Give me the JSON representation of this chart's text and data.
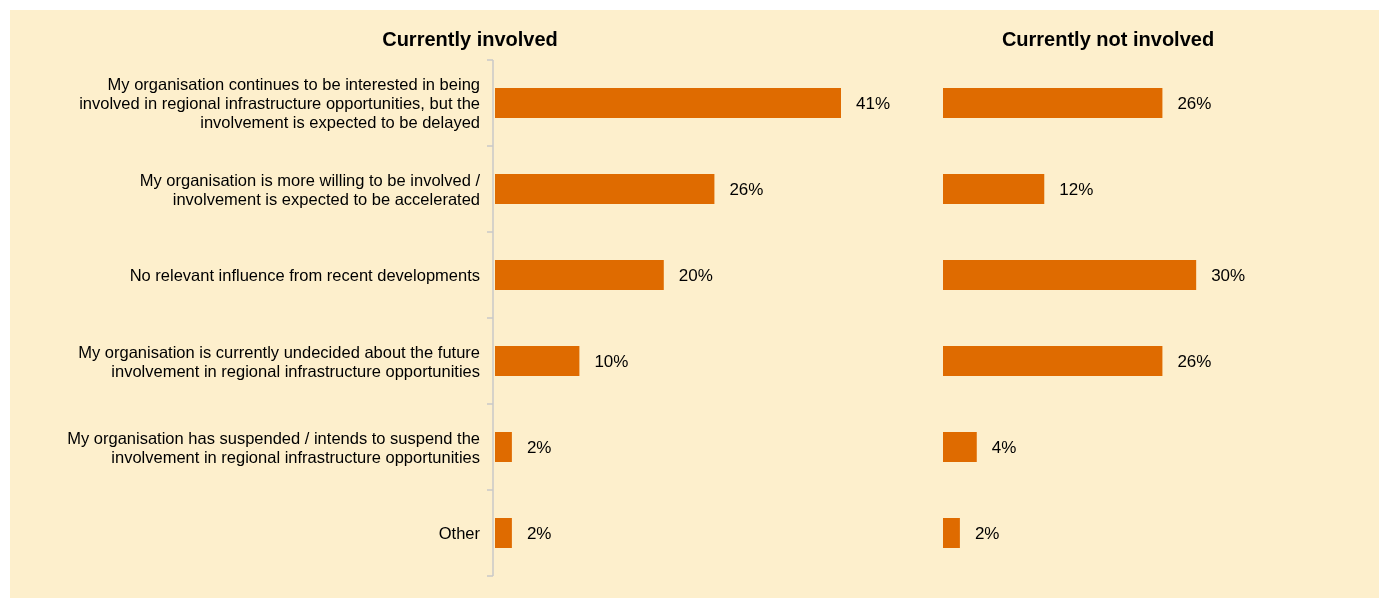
{
  "chart_data": [
    {
      "type": "bar",
      "orientation": "horizontal",
      "title": "Currently involved",
      "categories": [
        "My organisation continues to be interested in being involved in regional infrastructure opportunities, but the involvement is expected to be delayed",
        "My organisation is more willing to be involved / involvement is expected to be accelerated",
        "No relevant influence from recent developments",
        "My organisation is currently undecided about the future involvement in regional infrastructure opportunities",
        "My organisation has suspended / intends to suspend the involvement in regional infrastructure opportunities",
        "Other"
      ],
      "values": [
        41,
        26,
        20,
        10,
        2,
        2
      ],
      "value_labels": [
        "41%",
        "26%",
        "20%",
        "10%",
        "2%",
        "2%"
      ],
      "color": "#df6b00",
      "tick_labels": "y"
    },
    {
      "type": "bar",
      "orientation": "horizontal",
      "title": "Currently not involved",
      "categories": [
        null,
        null,
        null,
        null,
        null,
        null
      ],
      "values": [
        26,
        12,
        30,
        26,
        4,
        2
      ],
      "value_labels": [
        "26%",
        "12%",
        "30%",
        "26%",
        "4%",
        "2%"
      ],
      "color": "#df6b00",
      "tick_labels": false
    }
  ]
}
